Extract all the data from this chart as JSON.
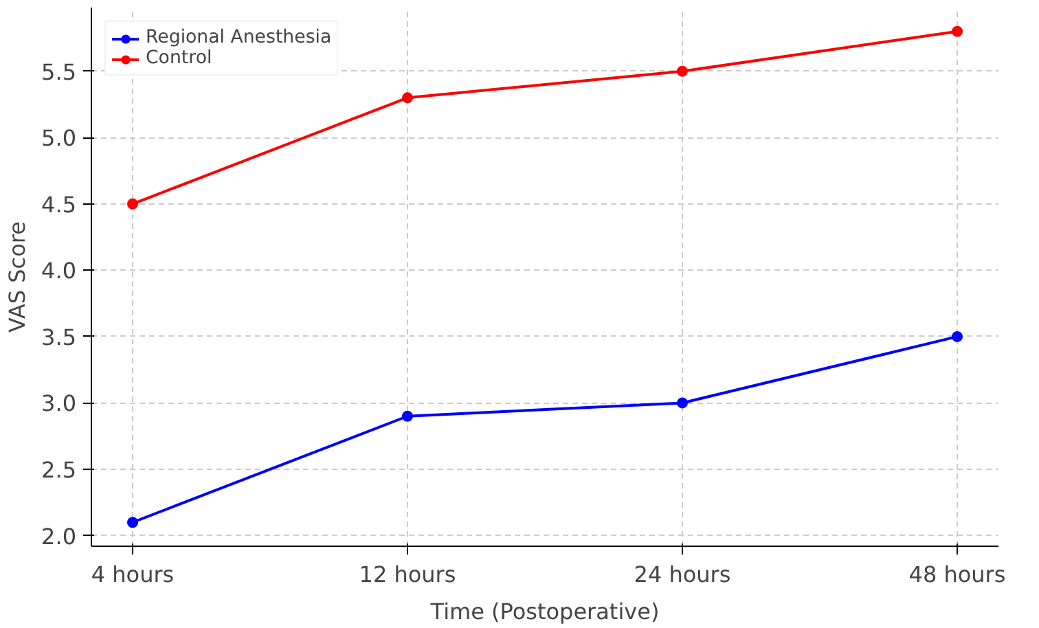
{
  "chart_data": {
    "type": "line",
    "xlabel": "Time (Postoperative)",
    "ylabel": "VAS Score",
    "categories": [
      "4 hours",
      "12 hours",
      "24 hours",
      "48 hours"
    ],
    "series": [
      {
        "name": "Regional Anesthesia",
        "color": "#0000ff",
        "values": [
          2.1,
          2.9,
          3.0,
          3.5
        ]
      },
      {
        "name": "Control",
        "color": "#ff0000",
        "values": [
          4.5,
          5.3,
          5.5,
          5.8
        ]
      }
    ],
    "ylim": [
      1.92,
      5.98
    ],
    "yticks": [
      {
        "value": 2,
        "label": "2.0"
      },
      2.5,
      {
        "value": 3,
        "label": "3.0"
      },
      3.5,
      {
        "value": 4,
        "label": "4.0"
      },
      4.5,
      {
        "value": 5,
        "label": "5.0"
      },
      5.5
    ],
    "grid": true,
    "legend": "top left",
    "marker": "circle",
    "line_style": "solid"
  }
}
